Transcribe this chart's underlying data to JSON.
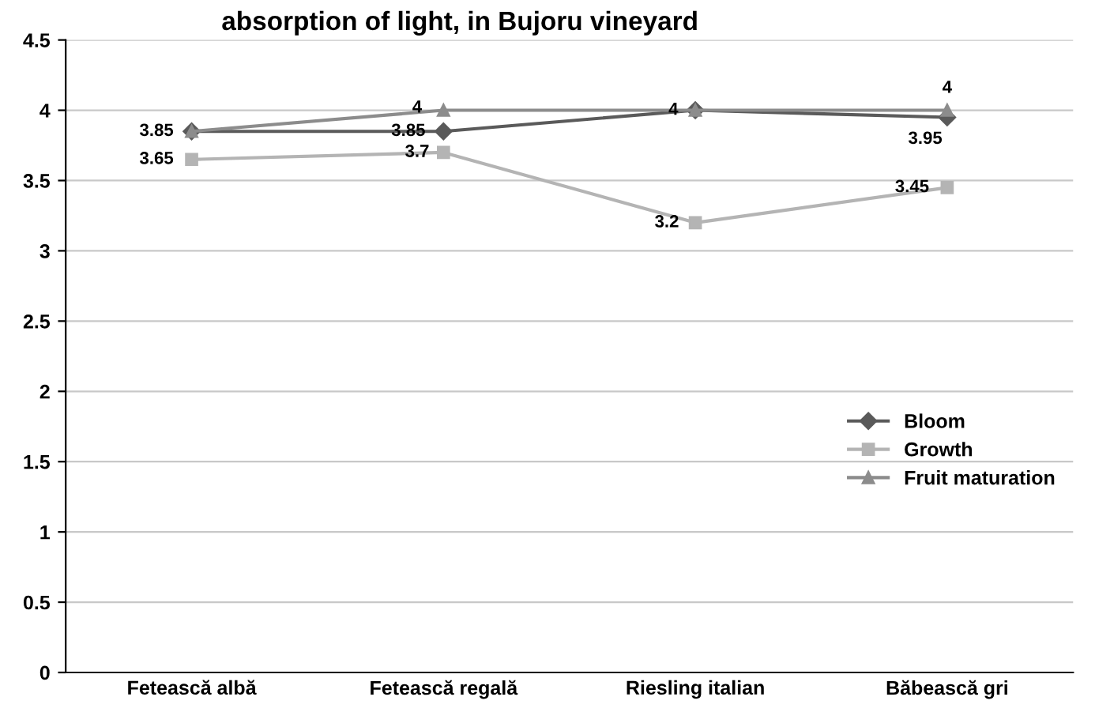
{
  "chart_data": {
    "type": "line",
    "title": "absorption of light, in Bujoru vineyard",
    "categories": [
      "Fetească albă",
      "Fetească regală",
      "Riesling italian",
      "Băbească gri"
    ],
    "series": [
      {
        "name": "Bloom",
        "color": "#5a5a5a",
        "marker": "diamond",
        "values": [
          3.85,
          3.85,
          4,
          3.95
        ],
        "value_labels": [
          "3.85",
          "3.85",
          "4",
          "3.95"
        ]
      },
      {
        "name": "Growth",
        "color": "#b4b4b4",
        "marker": "square",
        "values": [
          3.65,
          3.7,
          3.2,
          3.45
        ],
        "value_labels": [
          "3.65",
          "3.7",
          "3.2",
          "3.45"
        ]
      },
      {
        "name": "Fruit maturation",
        "color": "#8c8c8c",
        "marker": "triangle",
        "values": [
          3.85,
          4,
          4,
          4
        ],
        "value_labels": [
          null,
          "4",
          null,
          "4"
        ]
      }
    ],
    "ylim": [
      0,
      4.5
    ],
    "yticks": [
      0,
      0.5,
      1,
      1.5,
      2,
      2.5,
      3,
      3.5,
      4,
      4.5
    ],
    "grid": "y",
    "legend": "right"
  }
}
